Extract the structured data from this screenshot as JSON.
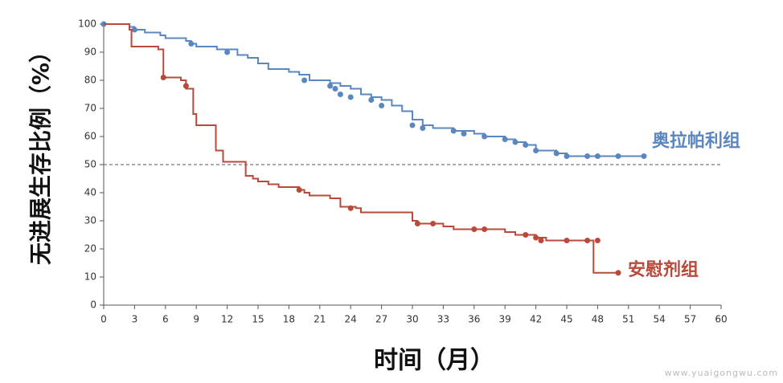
{
  "chart_data": {
    "type": "line",
    "step": "post",
    "xlabel": "时间（月）",
    "ylabel": "无进展生存比例（%）",
    "xlim": [
      0,
      60
    ],
    "xticks": [
      0,
      3,
      6,
      9,
      12,
      15,
      18,
      21,
      24,
      27,
      30,
      33,
      36,
      39,
      42,
      45,
      48,
      51,
      54,
      57,
      60
    ],
    "ylim": [
      0,
      100
    ],
    "yticks": [
      0,
      10,
      20,
      30,
      40,
      50,
      60,
      70,
      80,
      90,
      100
    ],
    "reference_line": {
      "value": 50,
      "color": "#555555"
    },
    "watermark": "www.yuaigongwu.com",
    "series": [
      {
        "name": "奥拉帕利组",
        "color": "#5b87c0",
        "x": [
          0,
          2.5,
          3,
          4,
          5.5,
          6,
          8,
          8.5,
          9,
          11,
          13,
          14,
          15,
          16,
          18,
          19,
          20,
          22,
          23,
          24,
          25,
          26,
          27,
          28,
          29,
          30,
          31,
          32,
          34,
          36,
          37,
          39,
          40,
          41,
          42,
          44,
          45,
          52.5
        ],
        "values": [
          100,
          99,
          98,
          97,
          96,
          95,
          94,
          93,
          92,
          91,
          89,
          88,
          86,
          84,
          83,
          82,
          80,
          79,
          78,
          77,
          75,
          74,
          73,
          71,
          69,
          66,
          64,
          63,
          62,
          61,
          60,
          59,
          58,
          57,
          55,
          54,
          53,
          53
        ],
        "censored_x": [
          0,
          3,
          8.5,
          12,
          19.5,
          22,
          22.5,
          23,
          24,
          26,
          27,
          30,
          31,
          34,
          35,
          37,
          39,
          40,
          41,
          42,
          44,
          45,
          47,
          48,
          50,
          52.5
        ],
        "censored_values": [
          100,
          98,
          93,
          90,
          80,
          78,
          77,
          75,
          74,
          73,
          71,
          64,
          63,
          62,
          61,
          60,
          59,
          58,
          57,
          55,
          54,
          53,
          53,
          53,
          53,
          53
        ]
      },
      {
        "name": "安慰剂组",
        "color": "#b94a3a",
        "x": [
          0,
          2.5,
          2.7,
          5.3,
          5.8,
          7.5,
          8,
          8.7,
          9,
          10.9,
          11.6,
          13.8,
          14.5,
          15,
          16,
          17,
          19,
          19.5,
          20,
          22,
          23,
          24.5,
          25,
          30,
          30.5,
          33,
          34,
          39,
          40,
          42,
          43,
          47.6,
          50
        ],
        "values": [
          100,
          98,
          92,
          91,
          81,
          80,
          77,
          68,
          64,
          55,
          51,
          46,
          45,
          44,
          43,
          42,
          41,
          40,
          39,
          38,
          35,
          34.5,
          33,
          30,
          29,
          28,
          27,
          26,
          25,
          24,
          23,
          11.5,
          11.5
        ],
        "censored_x": [
          5.8,
          8,
          19,
          24,
          30.5,
          32,
          36,
          37,
          41,
          42,
          42.5,
          45,
          47,
          48,
          50
        ],
        "censored_values": [
          81,
          78,
          41,
          34.5,
          29,
          29,
          27,
          27,
          25,
          24,
          23,
          23,
          23,
          23,
          11.5
        ]
      }
    ]
  }
}
